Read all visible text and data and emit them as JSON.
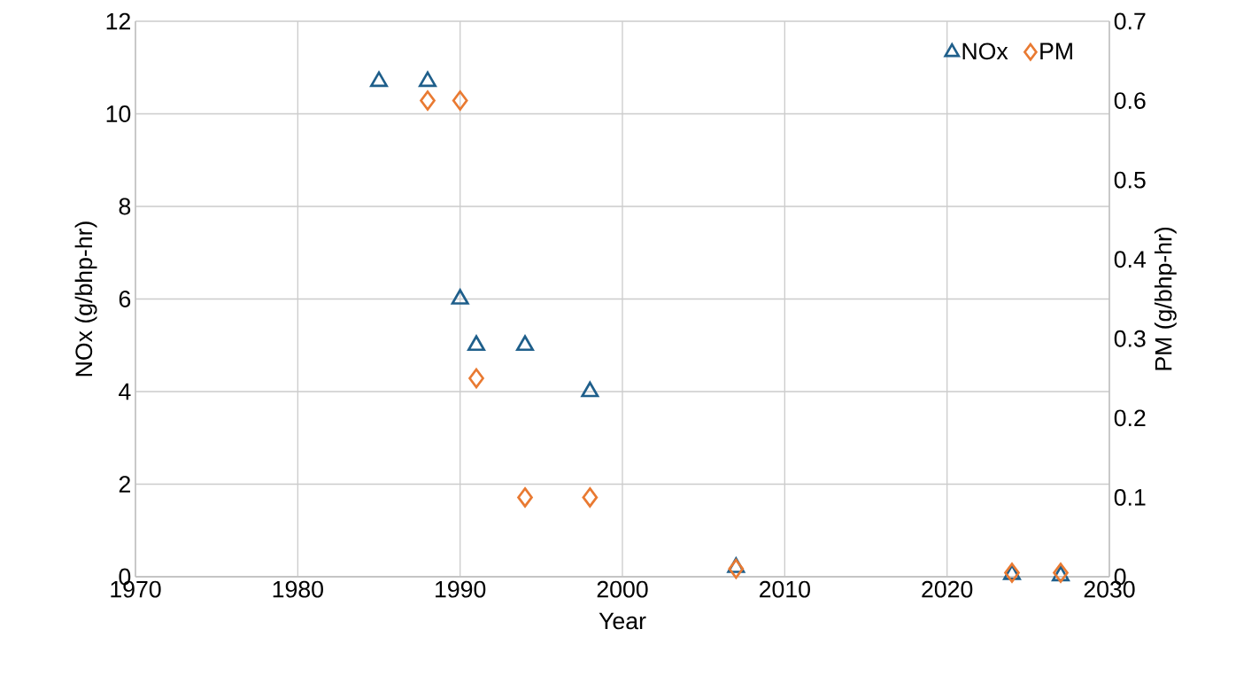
{
  "chart_data": {
    "type": "scatter",
    "xlabel": "Year",
    "ylabel": "NOx (g/bhp-hr)",
    "y2label": "PM (g/bhp-hr)",
    "series": [
      {
        "name": "NOx",
        "color": "#1f5f8b",
        "marker": "triangle",
        "axis": "y",
        "x": [
          1985,
          1988,
          1990,
          1991,
          1994,
          1998,
          2007,
          2024,
          2027
        ],
        "values": [
          10.7,
          10.7,
          6.0,
          5.0,
          5.0,
          4.0,
          0.2,
          0.05,
          0.02
        ]
      },
      {
        "name": "PM",
        "color": "#e97a32",
        "marker": "diamond",
        "axis": "y2",
        "x": [
          1988,
          1990,
          1991,
          1994,
          1998,
          2007,
          2024,
          2027
        ],
        "values": [
          0.6,
          0.6,
          0.25,
          0.1,
          0.1,
          0.01,
          0.005,
          0.005
        ]
      }
    ],
    "xlim": [
      1970,
      2030
    ],
    "xticks": [
      1970,
      1980,
      1990,
      2000,
      2010,
      2020,
      2030
    ],
    "ylim": [
      0,
      12
    ],
    "yticks": [
      0,
      2,
      4,
      6,
      8,
      10,
      12
    ],
    "y2lim": [
      0,
      0.7
    ],
    "y2ticks": [
      0,
      0.1,
      0.2,
      0.3,
      0.4,
      0.5,
      0.6,
      0.7
    ],
    "grid": true,
    "legend": "top right"
  }
}
